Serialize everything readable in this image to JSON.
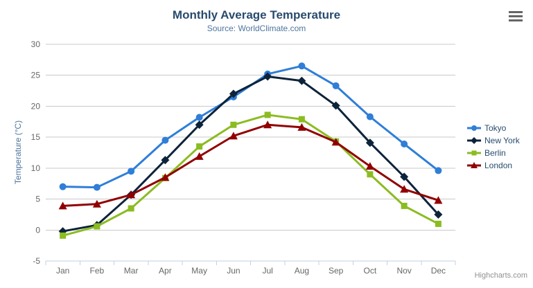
{
  "chart": {
    "title": "Monthly Average Temperature",
    "subtitle": "Source: WorldClimate.com",
    "credit": "Highcharts.com",
    "colors": {
      "title": "#274b6d",
      "subtitle": "#4d759e",
      "axis_label": "#666666",
      "axis_title": "#4d759e",
      "gridline": "#c9c9c9",
      "axis_line": "#c0d0e0",
      "legend_text": "#274b6d",
      "credit": "#909090",
      "menu_icon": "#666666",
      "background": "#ffffff"
    }
  },
  "chart_data": {
    "type": "line",
    "title": "Monthly Average Temperature",
    "subtitle": "Source: WorldClimate.com",
    "categories": [
      "Jan",
      "Feb",
      "Mar",
      "Apr",
      "May",
      "Jun",
      "Jul",
      "Aug",
      "Sep",
      "Oct",
      "Nov",
      "Dec"
    ],
    "xlabel": "",
    "ylabel": "Temperature (°C)",
    "ylim": [
      -5,
      30
    ],
    "ytick_interval": 5,
    "yticks": [
      -5,
      0,
      5,
      10,
      15,
      20,
      25,
      30
    ],
    "grid": true,
    "legend_position": "right",
    "series": [
      {
        "name": "Tokyo",
        "color": "#2f7ed8",
        "marker": "circle",
        "values": [
          7.0,
          6.9,
          9.5,
          14.5,
          18.2,
          21.5,
          25.2,
          26.5,
          23.3,
          18.3,
          13.9,
          9.6
        ]
      },
      {
        "name": "New York",
        "color": "#0d233a",
        "marker": "diamond",
        "values": [
          -0.2,
          0.8,
          5.7,
          11.3,
          17.0,
          22.0,
          24.8,
          24.1,
          20.1,
          14.1,
          8.6,
          2.5
        ]
      },
      {
        "name": "Berlin",
        "color": "#8bbc21",
        "marker": "square",
        "values": [
          -0.9,
          0.6,
          3.5,
          8.4,
          13.5,
          17.0,
          18.6,
          17.9,
          14.3,
          9.0,
          3.9,
          1.0
        ]
      },
      {
        "name": "London",
        "color": "#910000",
        "marker": "triangle",
        "values": [
          3.9,
          4.2,
          5.7,
          8.5,
          11.9,
          15.2,
          17.0,
          16.6,
          14.2,
          10.3,
          6.6,
          4.8
        ]
      }
    ]
  }
}
